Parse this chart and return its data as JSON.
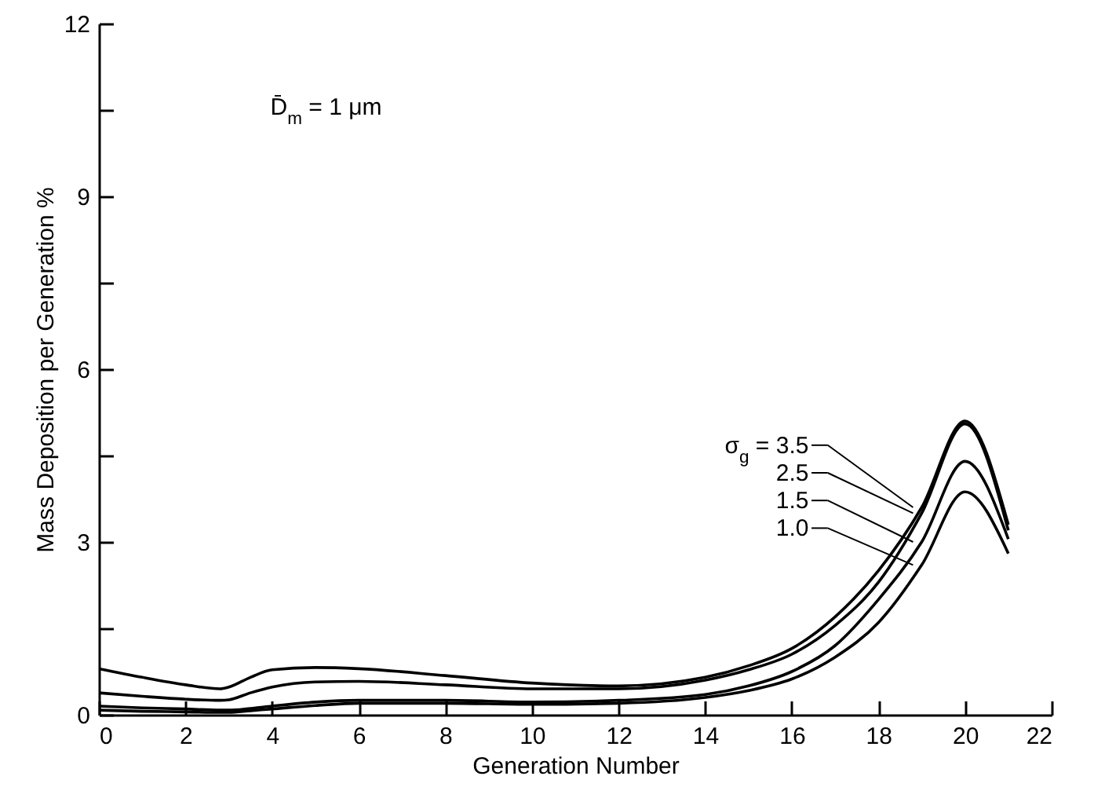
{
  "chart_data": {
    "type": "line",
    "xlabel": "Generation Number",
    "ylabel": "Mass Deposition per Generation  %",
    "annotations": [
      "D̄$_{m}$ = 1 μm"
    ],
    "x": [
      0,
      1,
      2,
      2.8,
      3,
      3.5,
      4,
      5,
      6,
      8,
      10,
      12,
      14,
      15,
      16,
      17,
      18,
      19,
      20,
      21
    ],
    "series": [
      {
        "name": "σ$_{g}$ = 3.5",
        "color": "#000000",
        "values": [
          0.8,
          0.65,
          0.52,
          0.45,
          0.48,
          0.65,
          0.78,
          0.82,
          0.8,
          0.68,
          0.55,
          0.5,
          0.65,
          0.85,
          1.15,
          1.7,
          2.5,
          3.6,
          5.1,
          3.3
        ]
      },
      {
        "name": "2.5",
        "color": "#000000",
        "values": [
          0.38,
          0.32,
          0.27,
          0.25,
          0.26,
          0.38,
          0.48,
          0.57,
          0.58,
          0.52,
          0.45,
          0.45,
          0.6,
          0.78,
          1.05,
          1.55,
          2.3,
          3.5,
          5.05,
          3.2
        ]
      },
      {
        "name": "1.5",
        "color": "#000000",
        "values": [
          0.15,
          0.12,
          0.1,
          0.08,
          0.08,
          0.11,
          0.15,
          0.22,
          0.25,
          0.25,
          0.22,
          0.25,
          0.35,
          0.5,
          0.75,
          1.2,
          2.0,
          3.0,
          4.4,
          3.05
        ]
      },
      {
        "name": "1.0",
        "color": "#000000",
        "values": [
          0.08,
          0.06,
          0.05,
          0.04,
          0.04,
          0.07,
          0.1,
          0.16,
          0.2,
          0.2,
          0.18,
          0.2,
          0.3,
          0.42,
          0.62,
          1.0,
          1.6,
          2.6,
          3.87,
          2.8
        ]
      }
    ],
    "xlim": [
      0,
      22
    ],
    "xticks": [
      0,
      2,
      4,
      6,
      8,
      10,
      12,
      14,
      16,
      18,
      20,
      22
    ],
    "ylim": [
      0,
      12
    ],
    "yticks": [
      0,
      {
        "value": 1.5,
        "label": null
      },
      3,
      {
        "value": 4.5,
        "label": null
      },
      6,
      {
        "value": 7.5,
        "label": null
      },
      9,
      {
        "value": 10.5,
        "label": null
      },
      12
    ],
    "grid": false,
    "legend": "right",
    "marker": "none",
    "line_style": "solid"
  }
}
